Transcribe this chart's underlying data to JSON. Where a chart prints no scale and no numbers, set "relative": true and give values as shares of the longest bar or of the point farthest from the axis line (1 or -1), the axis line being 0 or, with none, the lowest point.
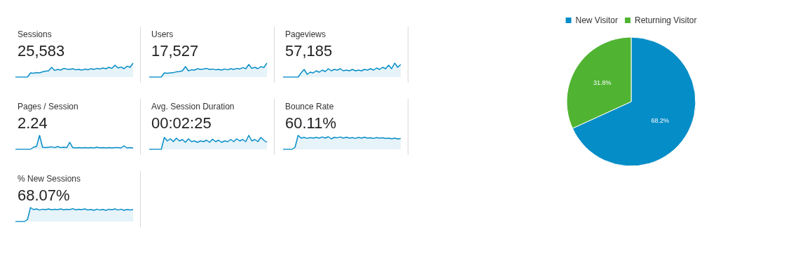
{
  "chart_data": [
    {
      "type": "area",
      "title": "Sessions",
      "subtitle": "25,583",
      "relative": true,
      "tick_labels": false,
      "categories": [
        null,
        null,
        null,
        null,
        null,
        null,
        null,
        null,
        null,
        null,
        null,
        null,
        null,
        null,
        null,
        null,
        null,
        null,
        null,
        null,
        null,
        null,
        null,
        null,
        null,
        null,
        null,
        null,
        null,
        null,
        null,
        null,
        null,
        null,
        null,
        null,
        null,
        null,
        null,
        null
      ],
      "series": [
        {
          "color": "#058dc7",
          "values": [
            0,
            0,
            0,
            0,
            0,
            0.3,
            0.28,
            0.32,
            0.3,
            0.38,
            0.42,
            0.45,
            0.7,
            0.48,
            0.55,
            0.5,
            0.62,
            0.58,
            0.55,
            0.6,
            0.52,
            0.55,
            0.5,
            0.57,
            0.52,
            0.6,
            0.55,
            0.62,
            0.58,
            0.65,
            0.6,
            0.7,
            0.62,
            0.85,
            0.65,
            0.72,
            0.6,
            0.78,
            0.7,
            1
          ]
        }
      ]
    },
    {
      "type": "area",
      "title": "Users",
      "subtitle": "17,527",
      "relative": true,
      "tick_labels": false,
      "categories": [
        null,
        null,
        null,
        null,
        null,
        null,
        null,
        null,
        null,
        null,
        null,
        null,
        null,
        null,
        null,
        null,
        null,
        null,
        null,
        null,
        null,
        null,
        null,
        null,
        null,
        null,
        null,
        null,
        null,
        null,
        null,
        null,
        null,
        null,
        null,
        null,
        null,
        null,
        null,
        null
      ],
      "series": [
        {
          "color": "#058dc7",
          "values": [
            0,
            0,
            0,
            0,
            0,
            0.3,
            0.27,
            0.3,
            0.32,
            0.38,
            0.4,
            0.45,
            0.75,
            0.45,
            0.52,
            0.5,
            0.6,
            0.55,
            0.58,
            0.62,
            0.55,
            0.58,
            0.52,
            0.55,
            0.5,
            0.58,
            0.52,
            0.6,
            0.55,
            0.62,
            0.58,
            0.68,
            0.6,
            0.9,
            0.62,
            0.7,
            0.6,
            0.75,
            0.68,
            1
          ]
        }
      ]
    },
    {
      "type": "area",
      "title": "Pageviews",
      "subtitle": "57,185",
      "relative": true,
      "tick_labels": false,
      "categories": [
        null,
        null,
        null,
        null,
        null,
        null,
        null,
        null,
        null,
        null,
        null,
        null,
        null,
        null,
        null,
        null,
        null,
        null,
        null,
        null,
        null,
        null,
        null,
        null,
        null,
        null,
        null,
        null,
        null,
        null,
        null,
        null,
        null,
        null,
        null,
        null,
        null,
        null,
        null,
        null
      ],
      "series": [
        {
          "color": "#058dc7",
          "values": [
            0,
            0,
            0,
            0,
            0,
            0,
            0.3,
            0.55,
            0.2,
            0.35,
            0.3,
            0.45,
            0.35,
            0.5,
            0.4,
            0.6,
            0.45,
            0.55,
            0.5,
            0.6,
            0.45,
            0.5,
            0.45,
            0.55,
            0.45,
            0.5,
            0.45,
            0.55,
            0.5,
            0.6,
            0.5,
            0.65,
            0.55,
            0.7,
            0.6,
            0.85,
            0.6,
            1,
            0.7,
            0.9
          ]
        }
      ]
    },
    {
      "type": "area",
      "title": "Pages / Session",
      "subtitle": "2.24",
      "relative": true,
      "tick_labels": false,
      "categories": [
        null,
        null,
        null,
        null,
        null,
        null,
        null,
        null,
        null,
        null,
        null,
        null,
        null,
        null,
        null,
        null,
        null,
        null,
        null,
        null,
        null,
        null,
        null,
        null,
        null,
        null,
        null,
        null,
        null,
        null,
        null,
        null,
        null,
        null,
        null,
        null,
        null,
        null,
        null,
        null
      ],
      "series": [
        {
          "color": "#058dc7",
          "values": [
            0,
            0,
            0,
            0,
            0,
            0,
            0.15,
            0.2,
            1,
            0.15,
            0.12,
            0.15,
            0.18,
            0.12,
            0.2,
            0.12,
            0.15,
            0.12,
            0.5,
            0.12,
            0.1,
            0.12,
            0.1,
            0.12,
            0.1,
            0.12,
            0.1,
            0.15,
            0.1,
            0.12,
            0.1,
            0.12,
            0.1,
            0.12,
            0.12,
            0.1,
            0.25,
            0.1,
            0.12,
            0.1
          ]
        }
      ]
    },
    {
      "type": "area",
      "title": "Avg. Session Duration",
      "subtitle": "00:02:25",
      "relative": true,
      "tick_labels": false,
      "categories": [
        null,
        null,
        null,
        null,
        null,
        null,
        null,
        null,
        null,
        null,
        null,
        null,
        null,
        null,
        null,
        null,
        null,
        null,
        null,
        null,
        null,
        null,
        null,
        null,
        null,
        null,
        null,
        null,
        null,
        null,
        null,
        null,
        null,
        null,
        null,
        null,
        null,
        null,
        null,
        null
      ],
      "series": [
        {
          "color": "#058dc7",
          "values": [
            0,
            0,
            0,
            0,
            0,
            0.85,
            0.6,
            0.75,
            0.55,
            0.8,
            0.6,
            0.7,
            0.5,
            0.75,
            0.55,
            0.6,
            0.5,
            0.6,
            0.55,
            0.65,
            0.5,
            0.72,
            0.55,
            0.65,
            0.5,
            0.6,
            0.55,
            0.7,
            0.55,
            0.75,
            0.6,
            0.7,
            0.55,
            1,
            0.6,
            0.7,
            0.55,
            0.85,
            0.65,
            0.5
          ]
        }
      ]
    },
    {
      "type": "area",
      "title": "Bounce Rate",
      "subtitle": "60.11%",
      "relative": true,
      "tick_labels": false,
      "categories": [
        null,
        null,
        null,
        null,
        null,
        null,
        null,
        null,
        null,
        null,
        null,
        null,
        null,
        null,
        null,
        null,
        null,
        null,
        null,
        null,
        null,
        null,
        null,
        null,
        null,
        null,
        null,
        null,
        null,
        null,
        null,
        null,
        null,
        null,
        null,
        null,
        null,
        null,
        null,
        null
      ],
      "series": [
        {
          "color": "#058dc7",
          "values": [
            0,
            0,
            0,
            0,
            0.15,
            1,
            0.8,
            0.85,
            0.78,
            0.84,
            0.8,
            0.85,
            0.8,
            0.88,
            0.8,
            0.9,
            0.75,
            0.85,
            0.82,
            0.88,
            0.8,
            0.86,
            0.8,
            0.84,
            0.78,
            0.85,
            0.8,
            0.86,
            0.8,
            0.82,
            0.78,
            0.84,
            0.8,
            0.82,
            0.78,
            0.8,
            0.75,
            0.8,
            0.74,
            0.78
          ]
        }
      ]
    },
    {
      "type": "area",
      "title": "% New Sessions",
      "subtitle": "68.07%",
      "relative": true,
      "tick_labels": false,
      "categories": [
        null,
        null,
        null,
        null,
        null,
        null,
        null,
        null,
        null,
        null,
        null,
        null,
        null,
        null,
        null,
        null,
        null,
        null,
        null,
        null,
        null,
        null,
        null,
        null,
        null,
        null,
        null,
        null,
        null,
        null,
        null,
        null,
        null,
        null,
        null,
        null,
        null,
        null,
        null,
        null
      ],
      "series": [
        {
          "color": "#058dc7",
          "values": [
            0,
            0,
            0,
            0,
            0.15,
            1,
            0.85,
            0.9,
            0.82,
            0.88,
            0.85,
            0.9,
            0.84,
            0.88,
            0.85,
            0.9,
            0.84,
            0.88,
            0.85,
            0.92,
            0.84,
            0.88,
            0.85,
            0.9,
            0.82,
            0.86,
            0.8,
            0.88,
            0.82,
            0.86,
            0.8,
            0.88,
            0.84,
            0.9,
            0.82,
            0.88,
            0.8,
            0.86,
            0.82,
            0.85
          ]
        }
      ]
    },
    {
      "type": "pie",
      "categories": [
        "New Visitor",
        "Returning Visitor"
      ],
      "values": [
        68.2,
        31.8
      ],
      "colors": [
        "#058dc7",
        "#50b432"
      ],
      "value_labels": [
        "68.2%",
        "31.8%"
      ],
      "legend": "top"
    }
  ]
}
